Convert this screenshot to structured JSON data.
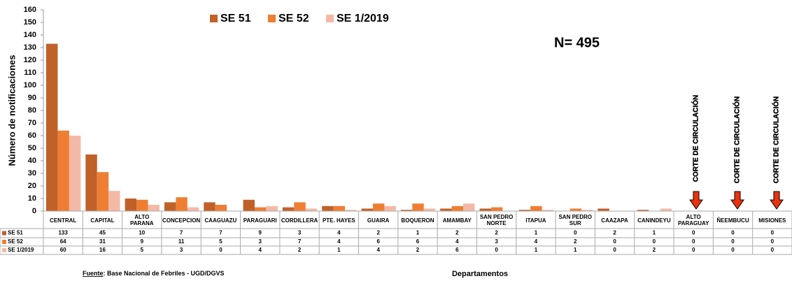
{
  "chart_data": {
    "type": "bar",
    "y_label": "Número de notificaciones",
    "x_label": "Departamentos",
    "note": "N= 495",
    "source_label": "Fuente",
    "source_text": ": Base Nacional de  Febriles - UGD/DGVS",
    "annotations": [
      "CORTE DE CIRCULACIÓN",
      "CORTE DE CIRCULACIÓN",
      "CORTE DE CIRCULACIÓN"
    ],
    "categories": [
      "CENTRAL",
      "CAPITAL",
      "ALTO PARANA",
      "CONCEPCION",
      "CAAGUAZU",
      "PARAGUARI",
      "CORDILLERA",
      "PTE. HAYES",
      "GUAIRA",
      "BOQUERON",
      "AMAMBAY",
      "SAN PEDRO NORTE",
      "ITAPUA",
      "SAN PEDRO SUR",
      "CAAZAPA",
      "CANINDEYU",
      "ALTO PARAGUAY",
      "ÑEEMBUCU",
      "MISIONES"
    ],
    "series": [
      {
        "name": "SE 51",
        "color": "#c0612a",
        "values": [
          133,
          45,
          10,
          7,
          7,
          9,
          3,
          4,
          2,
          1,
          2,
          2,
          1,
          0,
          2,
          1,
          0,
          0,
          0
        ]
      },
      {
        "name": "SE 52",
        "color": "#ef7e33",
        "values": [
          64,
          31,
          9,
          11,
          5,
          3,
          7,
          4,
          6,
          6,
          4,
          3,
          4,
          2,
          0,
          0,
          0,
          0,
          0
        ]
      },
      {
        "name": "SE 1/2019",
        "color": "#f4b9a6",
        "values": [
          60,
          16,
          5,
          3,
          0,
          4,
          2,
          1,
          4,
          2,
          6,
          0,
          1,
          1,
          0,
          2,
          0,
          0,
          0
        ]
      }
    ],
    "ylim": [
      0,
      160
    ],
    "yticks": [
      0,
      10,
      20,
      30,
      40,
      50,
      60,
      70,
      80,
      90,
      100,
      110,
      120,
      130,
      140,
      150,
      160
    ],
    "grid": false
  }
}
